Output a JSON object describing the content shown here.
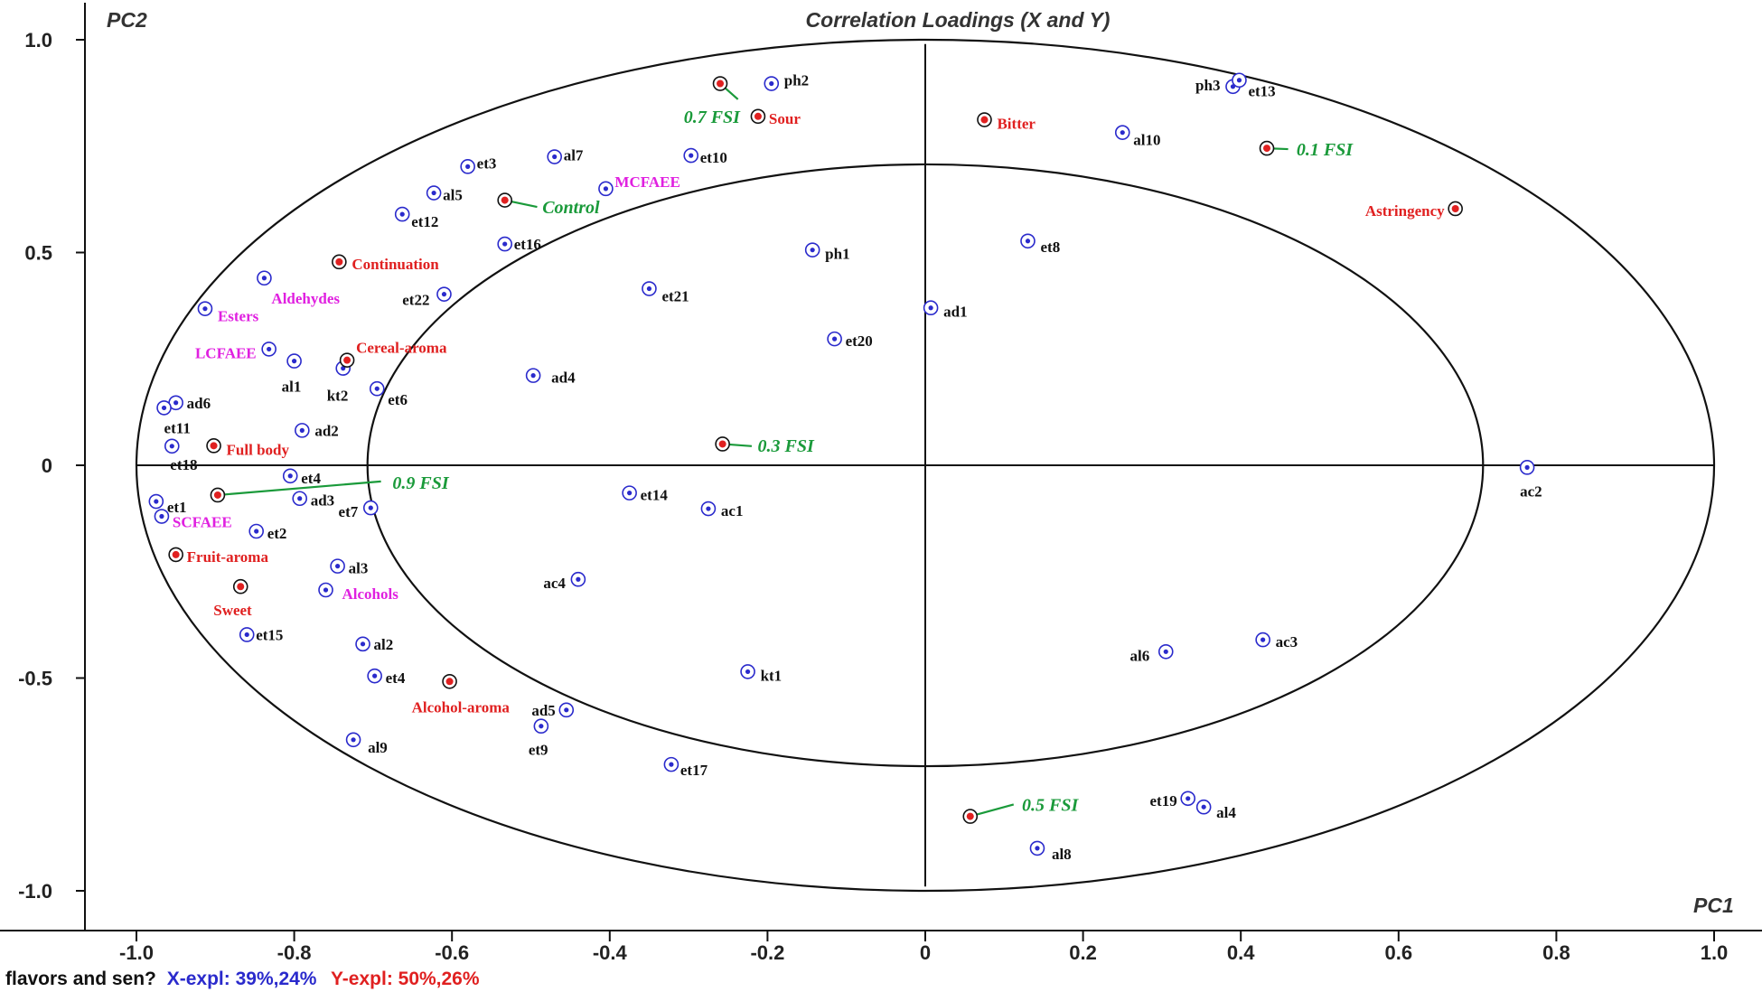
{
  "chart_data": {
    "type": "scatter",
    "title": "Correlation Loadings (X and Y)",
    "xlabel": "PC1",
    "ylabel": "PC2",
    "xlim": [
      -1.0,
      1.0
    ],
    "ylim": [
      -1.0,
      1.0
    ],
    "xticks": [
      "-1.0",
      "-0.8",
      "-0.6",
      "-0.4",
      "-0.2",
      "0",
      "0.2",
      "0.4",
      "0.6",
      "0.8",
      "1.0"
    ],
    "yticks": [
      "1.0",
      "0.5",
      "0",
      "-0.5",
      "-1.0"
    ],
    "ellipses": [
      {
        "name": "outer",
        "r": 1.0
      },
      {
        "name": "inner",
        "r": 0.7071
      }
    ],
    "footer": {
      "prefix": "flavors and sen?",
      "x_expl": "X-expl: 39%,24%",
      "y_expl": "Y-expl: 50%,26%"
    },
    "colors": {
      "x_variable": "#2a2acc",
      "y_variable": "#e02020",
      "sample": "#1a9a3a",
      "group": "#e020e0",
      "label": "#111111",
      "axis": "#111111"
    },
    "x_variables": [
      {
        "label": "ph2",
        "x": -0.195,
        "y": 0.897
      },
      {
        "label": "ph3",
        "x": 0.39,
        "y": 0.89
      },
      {
        "label": "et13",
        "x": 0.398,
        "y": 0.905
      },
      {
        "label": "al10",
        "x": 0.25,
        "y": 0.782
      },
      {
        "label": "et3",
        "x": -0.58,
        "y": 0.702
      },
      {
        "label": "al7",
        "x": -0.47,
        "y": 0.725
      },
      {
        "label": "et10",
        "x": -0.297,
        "y": 0.728
      },
      {
        "label": "al5",
        "x": -0.623,
        "y": 0.64
      },
      {
        "label": "et12",
        "x": -0.663,
        "y": 0.59
      },
      {
        "label": "et16",
        "x": -0.533,
        "y": 0.52
      },
      {
        "label": "et8",
        "x": 0.13,
        "y": 0.527
      },
      {
        "label": "ph1",
        "x": -0.143,
        "y": 0.506
      },
      {
        "label": "et21",
        "x": -0.35,
        "y": 0.415
      },
      {
        "label": "et22",
        "x": -0.61,
        "y": 0.402
      },
      {
        "label": "ad1",
        "x": 0.007,
        "y": 0.37
      },
      {
        "label": "et20",
        "x": -0.115,
        "y": 0.297
      },
      {
        "label": "al1",
        "x": -0.8,
        "y": 0.245
      },
      {
        "label": "kt2",
        "x": -0.738,
        "y": 0.228
      },
      {
        "label": "ad4",
        "x": -0.497,
        "y": 0.211
      },
      {
        "label": "et6",
        "x": -0.695,
        "y": 0.18
      },
      {
        "label": "ad6",
        "x": -0.95,
        "y": 0.147
      },
      {
        "label": "et11",
        "x": -0.965,
        "y": 0.135
      },
      {
        "label": "ad2",
        "x": -0.79,
        "y": 0.082
      },
      {
        "label": "et18",
        "x": -0.955,
        "y": 0.045
      },
      {
        "label": "et4",
        "x": -0.805,
        "y": -0.025
      },
      {
        "label": "et14",
        "x": -0.375,
        "y": -0.065
      },
      {
        "label": "et1",
        "x": -0.975,
        "y": -0.085
      },
      {
        "label": "ad3",
        "x": -0.793,
        "y": -0.078
      },
      {
        "label": "et7",
        "x": -0.703,
        "y": -0.1
      },
      {
        "label": "ac1",
        "x": -0.275,
        "y": -0.102
      },
      {
        "label": "ac2",
        "x": 0.763,
        "y": -0.005
      },
      {
        "label": "et2",
        "x": -0.848,
        "y": -0.155
      },
      {
        "label": "al3",
        "x": -0.745,
        "y": -0.237
      },
      {
        "label": "ac4",
        "x": -0.44,
        "y": -0.268
      },
      {
        "label": "et15",
        "x": -0.86,
        "y": -0.398
      },
      {
        "label": "al2",
        "x": -0.713,
        "y": -0.42
      },
      {
        "label": "et4",
        "x": -0.698,
        "y": -0.495
      },
      {
        "label": "kt1",
        "x": -0.225,
        "y": -0.485
      },
      {
        "label": "al6",
        "x": 0.305,
        "y": -0.438
      },
      {
        "label": "ac3",
        "x": 0.428,
        "y": -0.41
      },
      {
        "label": "ad5",
        "x": -0.455,
        "y": -0.575
      },
      {
        "label": "et9",
        "x": -0.487,
        "y": -0.613
      },
      {
        "label": "al9",
        "x": -0.725,
        "y": -0.645
      },
      {
        "label": "et17",
        "x": -0.322,
        "y": -0.703
      },
      {
        "label": "et19",
        "x": 0.333,
        "y": -0.783
      },
      {
        "label": "al4",
        "x": 0.353,
        "y": -0.803
      },
      {
        "label": "al8",
        "x": 0.142,
        "y": -0.9
      }
    ],
    "group_variables": [
      {
        "label": "MCFAEE",
        "x": -0.405,
        "y": 0.65
      },
      {
        "label": "Aldehydes",
        "x": -0.838,
        "y": 0.44
      },
      {
        "label": "Esters",
        "x": -0.913,
        "y": 0.368
      },
      {
        "label": "LCFAEE",
        "x": -0.832,
        "y": 0.273
      },
      {
        "label": "SCFAEE",
        "x": -0.968,
        "y": -0.12
      },
      {
        "label": "Alcohols",
        "x": -0.76,
        "y": -0.293
      }
    ],
    "y_variables": [
      {
        "label": "Sour",
        "x": -0.212,
        "y": 0.82
      },
      {
        "label": "Bitter",
        "x": 0.075,
        "y": 0.812
      },
      {
        "label": "Astringency",
        "x": 0.672,
        "y": 0.603
      },
      {
        "label": "Continuation",
        "x": -0.743,
        "y": 0.478
      },
      {
        "label": "Cereal-aroma",
        "x": -0.733,
        "y": 0.247
      },
      {
        "label": "Full body",
        "x": -0.902,
        "y": 0.046
      },
      {
        "label": "Fruit-aroma",
        "x": -0.95,
        "y": -0.21
      },
      {
        "label": "Sweet",
        "x": -0.868,
        "y": -0.285
      },
      {
        "label": "Alcohol-aroma",
        "x": -0.603,
        "y": -0.508
      }
    ],
    "samples": [
      {
        "label": "0.7 FSI",
        "x": -0.26,
        "y": 0.897
      },
      {
        "label": "0.1 FSI",
        "x": 0.433,
        "y": 0.745
      },
      {
        "label": "Control",
        "x": -0.533,
        "y": 0.623
      },
      {
        "label": "0.3 FSI",
        "x": -0.257,
        "y": 0.05
      },
      {
        "label": "0.9 FSI",
        "x": -0.897,
        "y": -0.07
      },
      {
        "label": "0.5 FSI",
        "x": 0.057,
        "y": -0.825
      }
    ]
  }
}
